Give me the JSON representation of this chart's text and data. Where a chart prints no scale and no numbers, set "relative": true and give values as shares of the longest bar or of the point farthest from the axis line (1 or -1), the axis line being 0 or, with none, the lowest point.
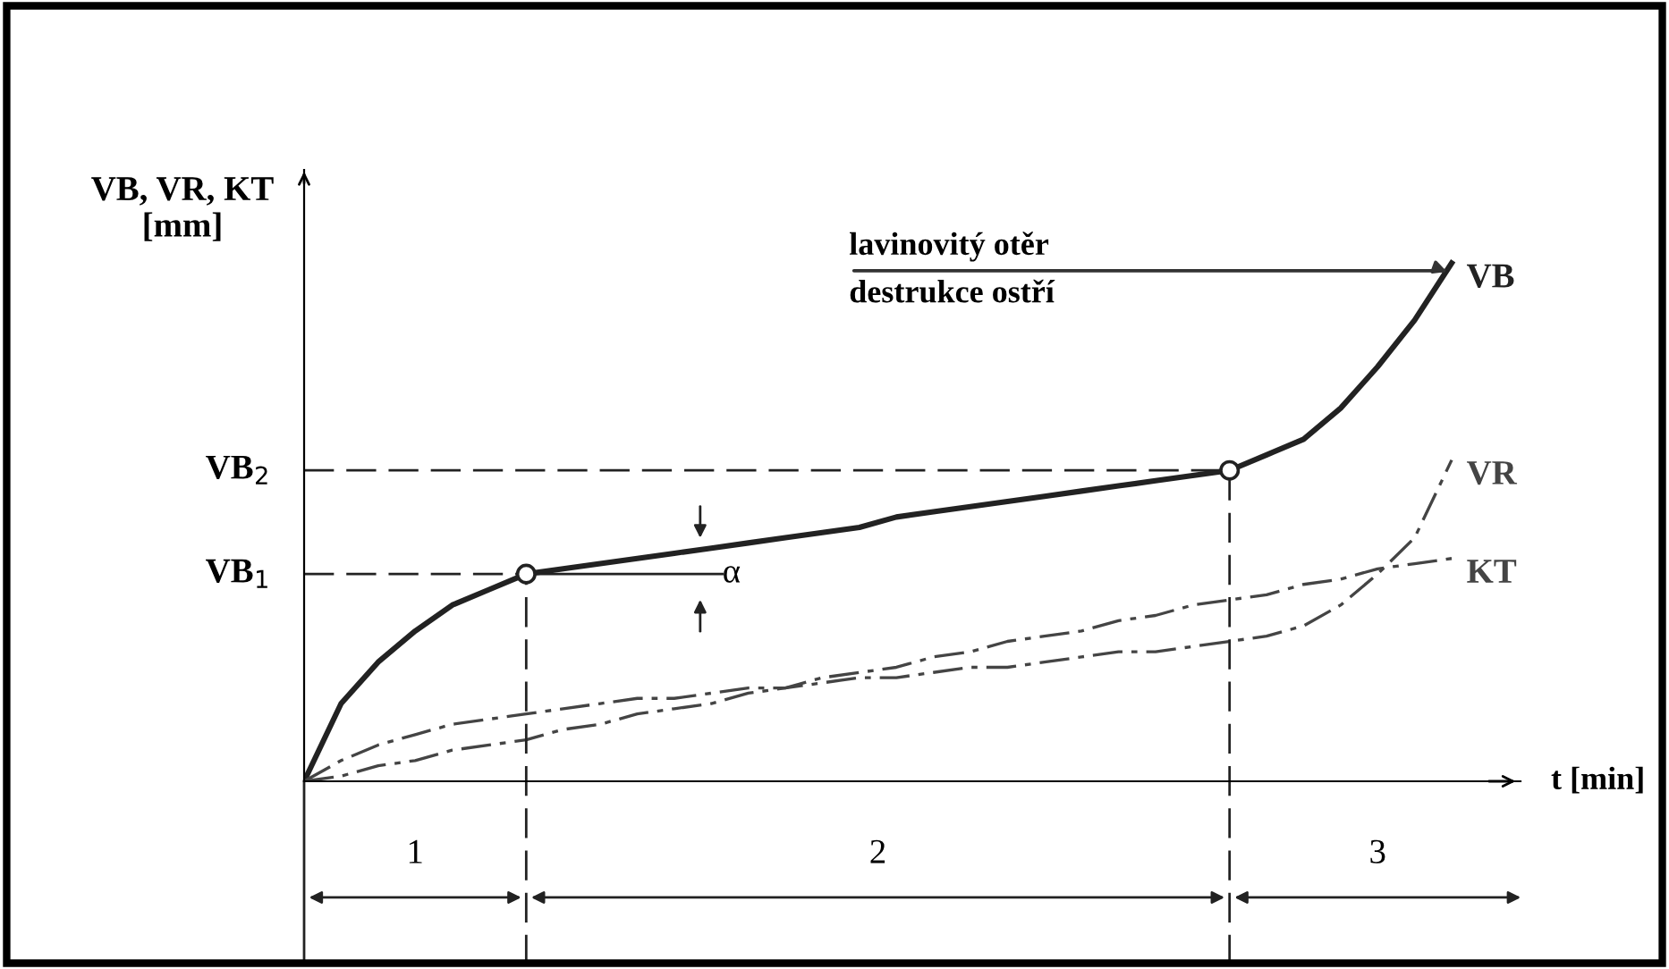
{
  "chart_data": {
    "type": "line",
    "relative": true,
    "xlabel": "t [min]",
    "ylabel": "VB, VR, KT\n[mm]",
    "categories": [
      null,
      null,
      null,
      null,
      null,
      null,
      null,
      null,
      null,
      null,
      null,
      null,
      null,
      null,
      null,
      null,
      null,
      null,
      null,
      null,
      null,
      null,
      null,
      null,
      null,
      null,
      null,
      null,
      null,
      null,
      null,
      null
    ],
    "series": [
      {
        "name": "VB",
        "color": "#222222",
        "line_style": "solid",
        "values": [
          0,
          0.15,
          0.23,
          0.29,
          0.34,
          0.37,
          0.4,
          0.41,
          0.42,
          0.43,
          0.44,
          0.45,
          0.46,
          0.47,
          0.48,
          0.49,
          0.51,
          0.52,
          0.53,
          0.54,
          0.55,
          0.56,
          0.57,
          0.58,
          0.59,
          0.6,
          0.63,
          0.66,
          0.72,
          0.8,
          0.89,
          1
        ]
      },
      {
        "name": "VR",
        "color": "#444444",
        "line_style": "dashdot",
        "values": [
          0,
          0.04,
          0.07,
          0.09,
          0.11,
          0.12,
          0.13,
          0.14,
          0.15,
          0.16,
          0.16,
          0.17,
          0.18,
          0.18,
          0.19,
          0.2,
          0.2,
          0.21,
          0.22,
          0.22,
          0.23,
          0.24,
          0.25,
          0.25,
          0.26,
          0.27,
          0.28,
          0.3,
          0.34,
          0.4,
          0.47,
          0.62
        ]
      },
      {
        "name": "KT",
        "color": "#444444",
        "line_style": "dashdot",
        "values": [
          0,
          0.01,
          0.03,
          0.04,
          0.06,
          0.07,
          0.08,
          0.1,
          0.11,
          0.13,
          0.14,
          0.15,
          0.17,
          0.18,
          0.2,
          0.21,
          0.22,
          0.24,
          0.25,
          0.27,
          0.28,
          0.29,
          0.31,
          0.32,
          0.34,
          0.35,
          0.36,
          0.38,
          0.39,
          0.41,
          0.42,
          0.43
        ]
      }
    ],
    "ref_lines": [
      {
        "axis": "y",
        "value": 0.4,
        "label": "VB$_{1}$",
        "line_style": "dashed",
        "color": "#222222"
      },
      {
        "axis": "y",
        "value": 0.6,
        "label": "VB$_{2}$",
        "line_style": "dashed",
        "color": "#222222"
      }
    ],
    "annotations": [
      "lavinovitý otěr",
      "destrukce ostří",
      "α",
      "1",
      "2",
      "3"
    ],
    "grid": false,
    "legend": "right"
  }
}
